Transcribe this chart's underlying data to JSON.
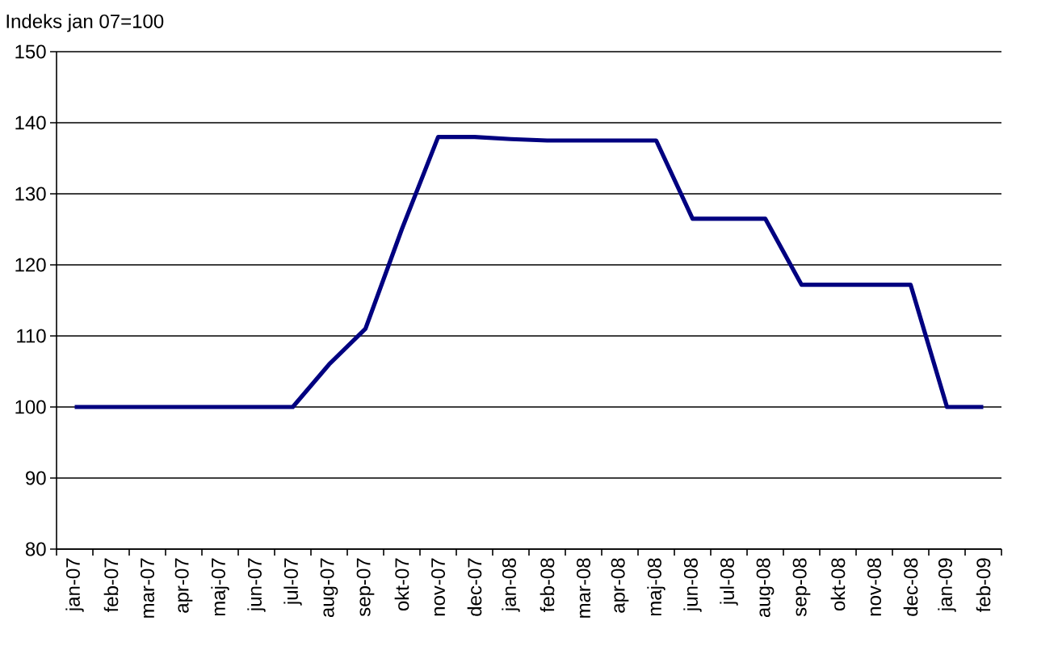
{
  "chart_data": {
    "type": "line",
    "ylabel": "Indeks jan 07=100",
    "categories": [
      "jan-07",
      "feb-07",
      "mar-07",
      "apr-07",
      "maj-07",
      "jun-07",
      "jul-07",
      "aug-07",
      "sep-07",
      "okt-07",
      "nov-07",
      "dec-07",
      "jan-08",
      "feb-08",
      "mar-08",
      "apr-08",
      "maj-08",
      "jun-08",
      "jul-08",
      "aug-08",
      "sep-08",
      "okt-08",
      "nov-08",
      "dec-08",
      "jan-09",
      "feb-09"
    ],
    "series": [
      {
        "color": "#000080",
        "values": [
          100,
          100,
          100,
          100,
          100,
          100,
          100,
          106,
          111,
          125,
          138,
          138,
          137.7,
          137.5,
          137.5,
          137.5,
          137.5,
          126.5,
          126.5,
          126.5,
          117.2,
          117.2,
          117.2,
          117.2,
          100,
          100
        ]
      }
    ],
    "ylim": [
      80,
      150
    ],
    "yticks": [
      80,
      90,
      100,
      110,
      120,
      130,
      140,
      150
    ],
    "grid": "y",
    "marker": "none",
    "line_style": "solid"
  }
}
